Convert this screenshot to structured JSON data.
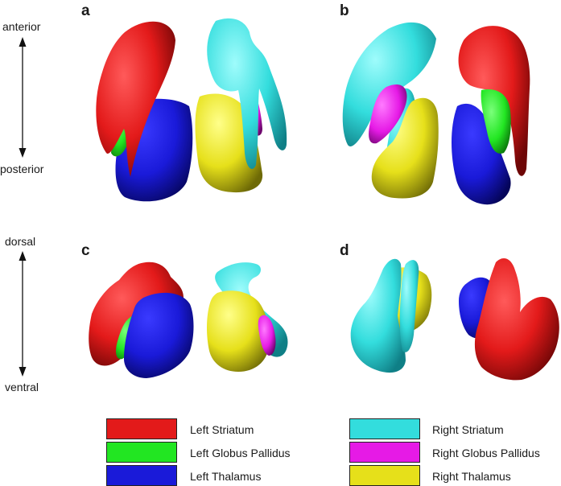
{
  "panels": {
    "a": "a",
    "b": "b",
    "c": "c",
    "d": "d"
  },
  "axes": {
    "top": {
      "start": "anterior",
      "end": "posterior"
    },
    "bottom": {
      "start": "dorsal",
      "end": "ventral"
    }
  },
  "legend": [
    {
      "label": "Left Striatum",
      "color": "#e31a1a"
    },
    {
      "label": "Left Globus Pallidus",
      "color": "#22e622"
    },
    {
      "label": "Left Thalamus",
      "color": "#1a1ad9"
    },
    {
      "label": "Right Striatum",
      "color": "#33dddd"
    },
    {
      "label": "Right Globus Pallidus",
      "color": "#e61ae6"
    },
    {
      "label": "Right Thalamus",
      "color": "#e6e01a"
    }
  ]
}
